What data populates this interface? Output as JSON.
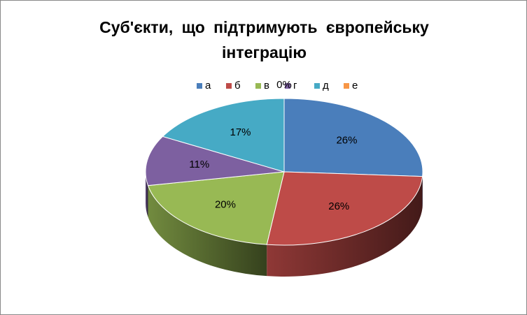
{
  "chart_data": {
    "type": "pie",
    "title": "Суб'єкти, що підтримують європейську інтеграцію",
    "categories": [
      "а",
      "б",
      "в",
      "г",
      "д",
      "е"
    ],
    "values": [
      26,
      26,
      20,
      11,
      17,
      0
    ],
    "value_labels": [
      "26%",
      "26%",
      "20%",
      "11%",
      "17%",
      "0%"
    ],
    "colors": [
      "#4a7ebb",
      "#be4b48",
      "#98b954",
      "#7d60a0",
      "#46aac5",
      "#f79646"
    ],
    "legend": "top"
  }
}
